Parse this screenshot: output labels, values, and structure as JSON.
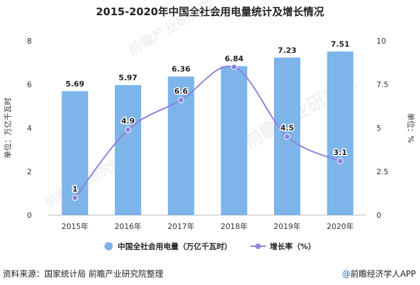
{
  "chart_data": {
    "type": "bar",
    "title": "2015-2020年中国全社会用电量统计及增长情况",
    "categories": [
      "2015年",
      "2016年",
      "2017年",
      "2018年",
      "2019年",
      "2020年"
    ],
    "series": [
      {
        "name": "中国全社会用电量（万亿千瓦时）",
        "type": "bar",
        "axis": "left",
        "values": [
          5.69,
          5.97,
          6.36,
          6.84,
          7.23,
          7.51
        ],
        "labels": [
          "5.69",
          "5.97",
          "6.36",
          "6.84",
          "7.23",
          "7.51"
        ],
        "color": "#7db4ea"
      },
      {
        "name": "增长率（%）",
        "type": "line",
        "axis": "right",
        "values": [
          1,
          4.9,
          6.6,
          8.5,
          4.5,
          3.1
        ],
        "labels": [
          "1",
          "4.9",
          "6.6",
          "",
          "4.5",
          "3.1"
        ],
        "color": "#8c84dc"
      }
    ],
    "ylabel": "单位：万亿千瓦时",
    "ylabel_right": "单位：%",
    "ylim": [
      0,
      8
    ],
    "ylim_right": [
      0,
      10
    ],
    "yticks": [
      "0",
      "2",
      "4",
      "6",
      "8"
    ],
    "yticks_right": [
      "0",
      "2.5",
      "5",
      "7.5",
      "10"
    ],
    "grid": false,
    "legend_position": "bottom"
  },
  "footer": {
    "source": "资料来源：国家统计局 前瞻产业研究院整理",
    "brand_mark": "@",
    "brand": "前瞻经济学人APP"
  },
  "watermark": "前瞻产业研究院",
  "colors": {
    "bar": "#7db4ea",
    "line": "#8c84dc",
    "axis": "#bbbbbb",
    "label": "#222222"
  }
}
